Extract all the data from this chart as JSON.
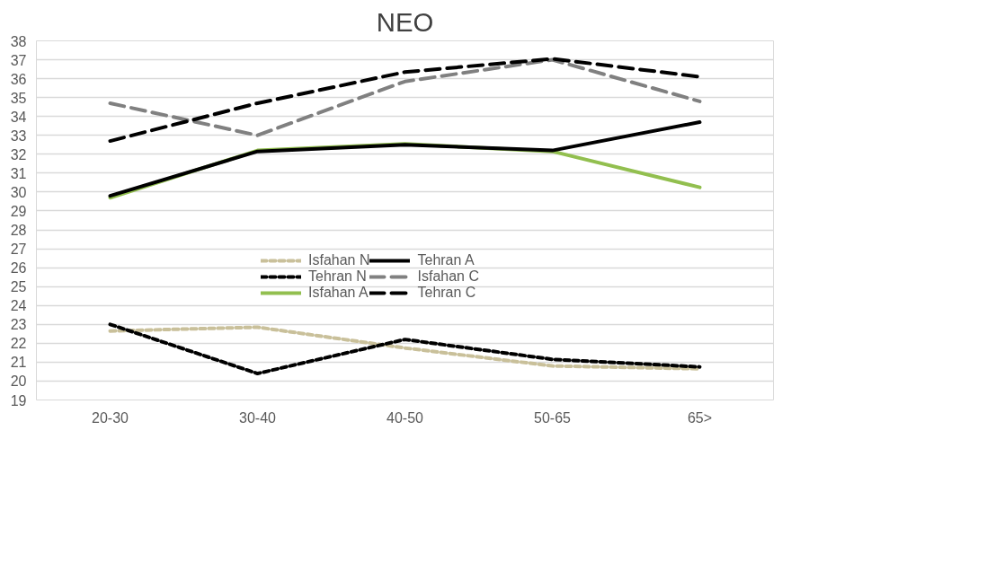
{
  "chart_data": {
    "type": "line",
    "title": "NEO",
    "categories": [
      "20-30",
      "30-40",
      "40-50",
      "50-65",
      "65>"
    ],
    "series": [
      {
        "name": "Isfahan N",
        "color": "#c9c09a",
        "line_style": "dotted",
        "values": [
          22.65,
          22.85,
          21.75,
          20.8,
          20.65
        ]
      },
      {
        "name": "Tehran N",
        "color": "#000000",
        "line_style": "dotted",
        "values": [
          23.0,
          20.4,
          22.2,
          21.15,
          20.75
        ]
      },
      {
        "name": "Isfahan A",
        "color": "#92bf4f",
        "line_style": "solid",
        "values": [
          29.7,
          32.2,
          32.55,
          32.15,
          30.25
        ]
      },
      {
        "name": "Tehran A",
        "color": "#000000",
        "line_style": "solid",
        "values": [
          29.8,
          32.15,
          32.5,
          32.2,
          33.7
        ]
      },
      {
        "name": "Isfahan C",
        "color": "#808080",
        "line_style": "dashed",
        "values": [
          34.7,
          33.0,
          35.85,
          37.0,
          34.8
        ]
      },
      {
        "name": "Tehran C",
        "color": "#000000",
        "line_style": "dashed",
        "values": [
          32.7,
          34.7,
          36.35,
          37.05,
          36.1
        ]
      }
    ],
    "ylim": [
      19,
      38
    ],
    "yticks": [
      19,
      20,
      21,
      22,
      23,
      24,
      25,
      26,
      27,
      28,
      29,
      30,
      31,
      32,
      33,
      34,
      35,
      36,
      37,
      38
    ],
    "grid": "y",
    "legend": "bottom",
    "marker": "none"
  }
}
